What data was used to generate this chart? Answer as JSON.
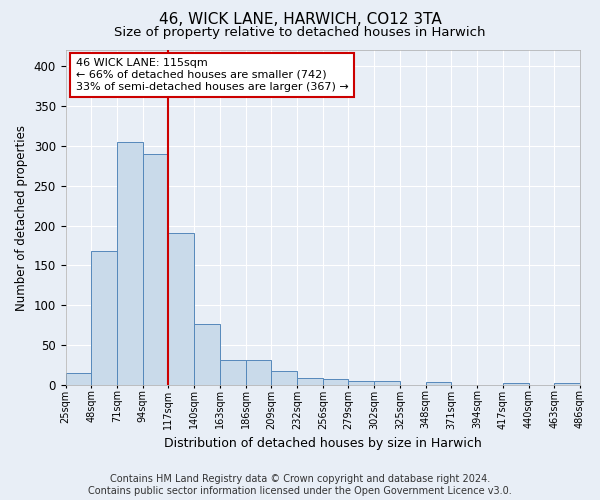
{
  "title": "46, WICK LANE, HARWICH, CO12 3TA",
  "subtitle": "Size of property relative to detached houses in Harwich",
  "xlabel": "Distribution of detached houses by size in Harwich",
  "ylabel": "Number of detached properties",
  "bar_values": [
    15,
    168,
    305,
    290,
    191,
    77,
    32,
    32,
    18,
    9,
    8,
    5,
    5,
    0,
    4,
    0,
    0,
    3,
    0,
    3
  ],
  "bar_labels": [
    "25sqm",
    "48sqm",
    "71sqm",
    "94sqm",
    "117sqm",
    "140sqm",
    "163sqm",
    "186sqm",
    "209sqm",
    "232sqm",
    "256sqm",
    "279sqm",
    "302sqm",
    "325sqm",
    "348sqm",
    "371sqm",
    "394sqm",
    "417sqm",
    "440sqm",
    "463sqm",
    "486sqm"
  ],
  "bar_color": "#c9daea",
  "bar_edgecolor": "#5588bb",
  "vline_x": 4,
  "vline_color": "#cc0000",
  "annotation_line1": "46 WICK LANE: 115sqm",
  "annotation_line2": "← 66% of detached houses are smaller (742)",
  "annotation_line3": "33% of semi-detached houses are larger (367) →",
  "annotation_box_edgecolor": "#cc0000",
  "annotation_box_facecolor": "white",
  "ylim": [
    0,
    420
  ],
  "yticks": [
    0,
    50,
    100,
    150,
    200,
    250,
    300,
    350,
    400
  ],
  "background_color": "#e8eef6",
  "plot_background": "#e8eef6",
  "grid_color": "#ffffff",
  "title_fontsize": 11,
  "subtitle_fontsize": 9.5,
  "footer_text": "Contains HM Land Registry data © Crown copyright and database right 2024.\nContains public sector information licensed under the Open Government Licence v3.0.",
  "footer_fontsize": 7
}
